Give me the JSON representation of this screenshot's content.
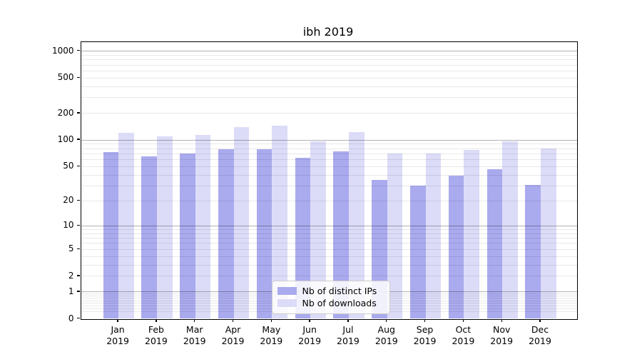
{
  "chart_data": {
    "type": "bar",
    "title": "ibh 2019",
    "categories": [
      "Jan",
      "Feb",
      "Mar",
      "Apr",
      "May",
      "Jun",
      "Jul",
      "Aug",
      "Sep",
      "Oct",
      "Nov",
      "Dec"
    ],
    "year_label": "2019",
    "series": [
      {
        "name": "Nb of distinct IPs",
        "color": "#aaaaee",
        "values": [
          73,
          65,
          70,
          79,
          78,
          63,
          74,
          35,
          30,
          39,
          47,
          31
        ]
      },
      {
        "name": "Nb of downloads",
        "color": "#dcdcf8",
        "values": [
          121,
          110,
          115,
          140,
          146,
          96,
          122,
          71,
          70,
          77,
          96,
          80
        ]
      }
    ],
    "xlabel": "",
    "ylabel": "",
    "y_scale": "log1p",
    "y_ticks": [
      1000,
      500,
      200,
      100,
      50,
      20,
      10,
      5,
      2,
      1,
      0
    ],
    "ylim": [
      0,
      1280
    ],
    "grid": "horizontal, light minor lines + darker decade lines",
    "legend_position": "inside bottom-center"
  }
}
